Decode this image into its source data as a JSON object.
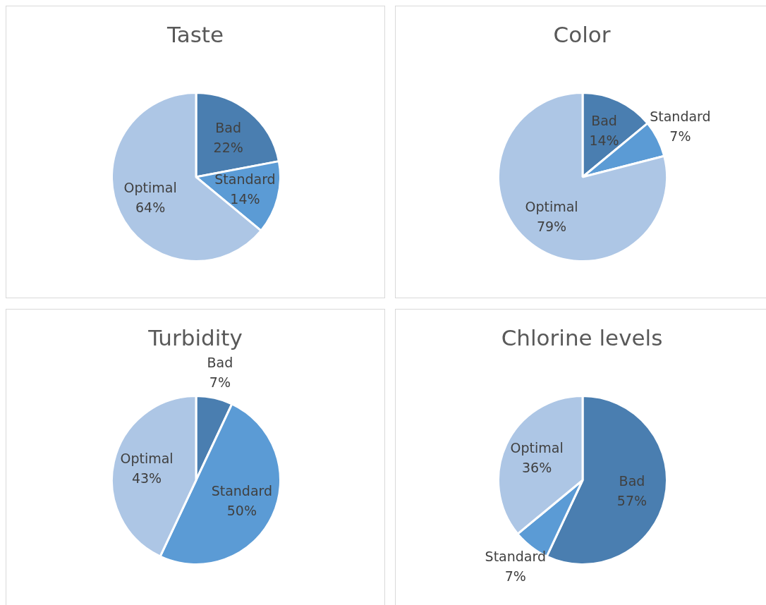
{
  "chart_data": [
    {
      "type": "pie",
      "title": "Taste",
      "categories": [
        "Bad",
        "Standard",
        "Optimal"
      ],
      "values": [
        22,
        14,
        64
      ],
      "value_labels": [
        "22%",
        "14%",
        "64%"
      ],
      "colors": [
        "#4a7eb0",
        "#5b9bd5",
        "#adc6e5"
      ],
      "legend": false
    },
    {
      "type": "pie",
      "title": "Color",
      "categories": [
        "Bad",
        "Standard",
        "Optimal"
      ],
      "values": [
        14,
        7,
        79
      ],
      "value_labels": [
        "14%",
        "7%",
        "79%"
      ],
      "colors": [
        "#4a7eb0",
        "#5b9bd5",
        "#adc6e5"
      ],
      "legend": false
    },
    {
      "type": "pie",
      "title": "Turbidity",
      "categories": [
        "Bad",
        "Standard",
        "Optimal"
      ],
      "values": [
        7,
        50,
        43
      ],
      "value_labels": [
        "7%",
        "50%",
        "43%"
      ],
      "colors": [
        "#4a7eb0",
        "#5b9bd5",
        "#adc6e5"
      ],
      "legend": false
    },
    {
      "type": "pie",
      "title": "Chlorine levels",
      "categories": [
        "Bad",
        "Standard",
        "Optimal"
      ],
      "values": [
        57,
        7,
        36
      ],
      "value_labels": [
        "57%",
        "7%",
        "36%"
      ],
      "colors": [
        "#4a7eb0",
        "#5b9bd5",
        "#adc6e5"
      ],
      "legend": false
    }
  ]
}
